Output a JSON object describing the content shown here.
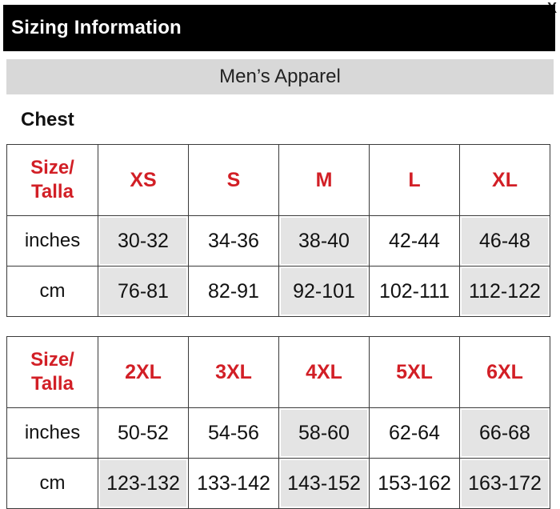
{
  "window": {
    "close_label": "X"
  },
  "header": {
    "title": "Sizing Information"
  },
  "category": {
    "title": "Men’s Apparel"
  },
  "section": {
    "title": "Chest"
  },
  "tables": [
    {
      "size_header": [
        "Size/",
        "Talla"
      ],
      "sizes": [
        "XS",
        "S",
        "M",
        "L",
        "XL"
      ],
      "rows": [
        {
          "label": "inches",
          "values": [
            "30-32",
            "34-36",
            "38-40",
            "42-44",
            "46-48"
          ]
        },
        {
          "label": "cm",
          "values": [
            "76-81",
            "82-91",
            "92-101",
            "102-111",
            "112-122"
          ]
        }
      ]
    },
    {
      "size_header": [
        "Size/",
        "Talla"
      ],
      "sizes": [
        "2XL",
        "3XL",
        "4XL",
        "5XL",
        "6XL"
      ],
      "rows": [
        {
          "label": "inches",
          "values": [
            "50-52",
            "54-56",
            "58-60",
            "62-64",
            "66-68"
          ]
        },
        {
          "label": "cm",
          "values": [
            "123-132",
            "133-142",
            "143-152",
            "153-162",
            "163-172"
          ]
        }
      ]
    }
  ],
  "colors": {
    "accent": "#d21f26",
    "header_bg": "#000000",
    "category_bg": "#d8d8d8",
    "cell_shade": "#e4e4e4"
  }
}
